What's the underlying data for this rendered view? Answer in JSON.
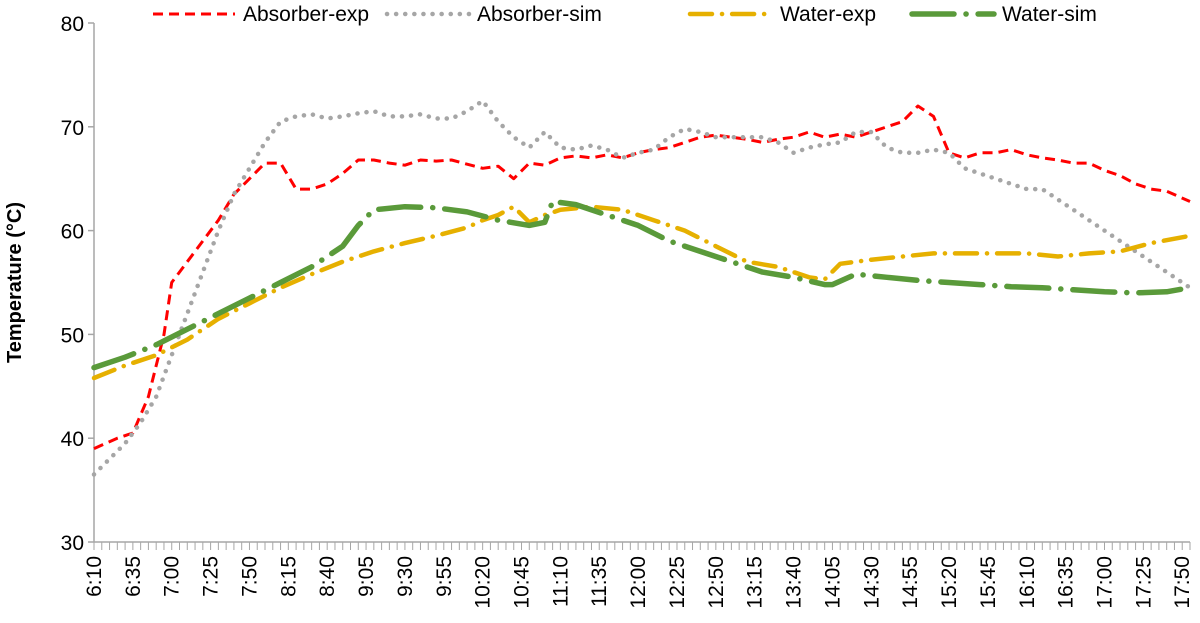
{
  "chart_data": {
    "type": "line",
    "title": "",
    "xlabel": "",
    "ylabel": "Temperature (°C)",
    "ylim": [
      30,
      80
    ],
    "yticks": [
      30,
      40,
      50,
      60,
      70,
      80
    ],
    "grid": false,
    "legend_position": "top",
    "x_start": "6:10",
    "x_end": "17:55",
    "x_step_minutes": 5,
    "x_tick_labels": [
      "6:10",
      "6:35",
      "7:00",
      "7:25",
      "7:50",
      "8:15",
      "8:40",
      "9:05",
      "9:30",
      "9:55",
      "10:20",
      "10:45",
      "11:10",
      "11:35",
      "12:00",
      "12:25",
      "12:50",
      "13:15",
      "13:40",
      "14:05",
      "14:30",
      "14:55",
      "15:20",
      "15:45",
      "16:10",
      "16:35",
      "17:00",
      "17:25",
      "17:50"
    ],
    "series": [
      {
        "name": "Absorber-exp",
        "color": "#ff0000",
        "style": "dashed",
        "points": [
          [
            "6:10",
            39.0
          ],
          [
            "6:25",
            40.0
          ],
          [
            "6:35",
            40.5
          ],
          [
            "6:45",
            44
          ],
          [
            "6:55",
            50
          ],
          [
            "7:00",
            55
          ],
          [
            "7:10",
            57
          ],
          [
            "7:20",
            59
          ],
          [
            "7:30",
            61
          ],
          [
            "7:40",
            63.5
          ],
          [
            "7:50",
            65
          ],
          [
            "8:00",
            66.5
          ],
          [
            "8:10",
            66.5
          ],
          [
            "8:20",
            64
          ],
          [
            "8:30",
            64
          ],
          [
            "8:40",
            64.5
          ],
          [
            "8:50",
            65.5
          ],
          [
            "9:00",
            66.8
          ],
          [
            "9:10",
            66.8
          ],
          [
            "9:20",
            66.5
          ],
          [
            "9:30",
            66.3
          ],
          [
            "9:40",
            66.8
          ],
          [
            "9:50",
            66.7
          ],
          [
            "10:00",
            66.8
          ],
          [
            "10:10",
            66.4
          ],
          [
            "10:20",
            66.0
          ],
          [
            "10:30",
            66.2
          ],
          [
            "10:40",
            65.0
          ],
          [
            "10:50",
            66.5
          ],
          [
            "11:00",
            66.3
          ],
          [
            "11:10",
            67.0
          ],
          [
            "11:20",
            67.2
          ],
          [
            "11:30",
            67.0
          ],
          [
            "11:40",
            67.3
          ],
          [
            "11:50",
            67.0
          ],
          [
            "12:00",
            67.5
          ],
          [
            "12:10",
            67.8
          ],
          [
            "12:20",
            68.0
          ],
          [
            "12:30",
            68.5
          ],
          [
            "12:40",
            69.0
          ],
          [
            "12:50",
            69.2
          ],
          [
            "13:00",
            69.0
          ],
          [
            "13:10",
            68.8
          ],
          [
            "13:20",
            68.5
          ],
          [
            "13:30",
            68.8
          ],
          [
            "13:40",
            69.0
          ],
          [
            "13:50",
            69.5
          ],
          [
            "14:00",
            69.0
          ],
          [
            "14:10",
            69.3
          ],
          [
            "14:20",
            69.0
          ],
          [
            "14:30",
            69.5
          ],
          [
            "14:40",
            70.0
          ],
          [
            "14:50",
            70.5
          ],
          [
            "15:00",
            72.0
          ],
          [
            "15:10",
            71.0
          ],
          [
            "15:20",
            67.5
          ],
          [
            "15:30",
            67.0
          ],
          [
            "15:40",
            67.5
          ],
          [
            "15:50",
            67.5
          ],
          [
            "16:00",
            67.8
          ],
          [
            "16:10",
            67.3
          ],
          [
            "16:20",
            67.0
          ],
          [
            "16:30",
            66.8
          ],
          [
            "16:40",
            66.5
          ],
          [
            "16:50",
            66.5
          ],
          [
            "17:00",
            65.8
          ],
          [
            "17:10",
            65.3
          ],
          [
            "17:20",
            64.5
          ],
          [
            "17:30",
            64.0
          ],
          [
            "17:40",
            63.8
          ],
          [
            "17:55",
            62.8
          ]
        ]
      },
      {
        "name": "Absorber-sim",
        "color": "#a6a6a6",
        "style": "dotted",
        "points": [
          [
            "6:10",
            36.5
          ],
          [
            "6:20",
            38.0
          ],
          [
            "6:30",
            39.5
          ],
          [
            "6:40",
            41.5
          ],
          [
            "6:50",
            44
          ],
          [
            "7:00",
            48
          ],
          [
            "7:10",
            52
          ],
          [
            "7:20",
            56
          ],
          [
            "7:30",
            60
          ],
          [
            "7:40",
            63.5
          ],
          [
            "7:50",
            66.0
          ],
          [
            "8:00",
            68.5
          ],
          [
            "8:10",
            70.5
          ],
          [
            "8:20",
            71.0
          ],
          [
            "8:30",
            71.2
          ],
          [
            "8:40",
            70.8
          ],
          [
            "8:50",
            71.0
          ],
          [
            "9:00",
            71.3
          ],
          [
            "9:10",
            71.5
          ],
          [
            "9:20",
            71.0
          ],
          [
            "9:30",
            71.0
          ],
          [
            "9:40",
            71.2
          ],
          [
            "9:50",
            70.8
          ],
          [
            "10:00",
            70.8
          ],
          [
            "10:10",
            71.5
          ],
          [
            "10:20",
            72.5
          ],
          [
            "10:30",
            70.5
          ],
          [
            "10:40",
            69.0
          ],
          [
            "10:50",
            68.0
          ],
          [
            "11:00",
            69.5
          ],
          [
            "11:10",
            68.0
          ],
          [
            "11:20",
            67.8
          ],
          [
            "11:30",
            68.2
          ],
          [
            "11:40",
            67.8
          ],
          [
            "11:50",
            67.0
          ],
          [
            "12:00",
            67.5
          ],
          [
            "12:10",
            67.8
          ],
          [
            "12:20",
            69.0
          ],
          [
            "12:30",
            69.8
          ],
          [
            "12:40",
            69.5
          ],
          [
            "12:50",
            69.0
          ],
          [
            "13:00",
            69.0
          ],
          [
            "13:10",
            69.0
          ],
          [
            "13:20",
            69.0
          ],
          [
            "13:30",
            68.5
          ],
          [
            "13:40",
            67.5
          ],
          [
            "13:50",
            68.0
          ],
          [
            "14:00",
            68.3
          ],
          [
            "14:10",
            68.5
          ],
          [
            "14:20",
            69.5
          ],
          [
            "14:30",
            69.5
          ],
          [
            "14:40",
            68.0
          ],
          [
            "14:50",
            67.5
          ],
          [
            "15:00",
            67.5
          ],
          [
            "15:10",
            67.8
          ],
          [
            "15:20",
            67.5
          ],
          [
            "15:30",
            66.0
          ],
          [
            "15:40",
            65.5
          ],
          [
            "15:50",
            65.0
          ],
          [
            "16:00",
            64.5
          ],
          [
            "16:10",
            64.0
          ],
          [
            "16:20",
            64.0
          ],
          [
            "16:30",
            63.0
          ],
          [
            "16:40",
            62.0
          ],
          [
            "16:50",
            61.0
          ],
          [
            "17:00",
            60.0
          ],
          [
            "17:10",
            59.0
          ],
          [
            "17:20",
            58.0
          ],
          [
            "17:30",
            57.0
          ],
          [
            "17:40",
            56.0
          ],
          [
            "17:55",
            54.5
          ]
        ]
      },
      {
        "name": "Water-exp",
        "color": "#e6b000",
        "style": "dash-dot",
        "points": [
          [
            "6:10",
            45.8
          ],
          [
            "6:30",
            47.0
          ],
          [
            "6:50",
            48.0
          ],
          [
            "7:10",
            49.5
          ],
          [
            "7:30",
            51.5
          ],
          [
            "7:50",
            53.0
          ],
          [
            "8:10",
            54.5
          ],
          [
            "8:30",
            55.8
          ],
          [
            "8:50",
            57.0
          ],
          [
            "9:10",
            58.0
          ],
          [
            "9:30",
            58.8
          ],
          [
            "9:50",
            59.5
          ],
          [
            "10:10",
            60.3
          ],
          [
            "10:20",
            61.0
          ],
          [
            "10:30",
            61.5
          ],
          [
            "10:40",
            62.3
          ],
          [
            "10:50",
            60.8
          ],
          [
            "11:00",
            61.5
          ],
          [
            "11:10",
            62.0
          ],
          [
            "11:30",
            62.3
          ],
          [
            "11:50",
            62.0
          ],
          [
            "12:10",
            61.0
          ],
          [
            "12:30",
            60.0
          ],
          [
            "12:50",
            58.5
          ],
          [
            "13:10",
            57.0
          ],
          [
            "13:30",
            56.5
          ],
          [
            "13:50",
            55.5
          ],
          [
            "14:00",
            55.3
          ],
          [
            "14:10",
            56.8
          ],
          [
            "14:30",
            57.2
          ],
          [
            "14:50",
            57.5
          ],
          [
            "15:10",
            57.8
          ],
          [
            "15:30",
            57.8
          ],
          [
            "15:50",
            57.8
          ],
          [
            "16:10",
            57.8
          ],
          [
            "16:30",
            57.5
          ],
          [
            "16:50",
            57.8
          ],
          [
            "17:10",
            58.0
          ],
          [
            "17:30",
            58.8
          ],
          [
            "17:55",
            59.5
          ]
        ]
      },
      {
        "name": "Water-sim",
        "color": "#5a9a3a",
        "style": "long-dash-dot",
        "points": [
          [
            "6:10",
            46.8
          ],
          [
            "6:30",
            47.8
          ],
          [
            "6:50",
            49.0
          ],
          [
            "7:10",
            50.5
          ],
          [
            "7:30",
            52.0
          ],
          [
            "7:50",
            53.5
          ],
          [
            "8:10",
            55.0
          ],
          [
            "8:30",
            56.5
          ],
          [
            "8:50",
            58.5
          ],
          [
            "9:00",
            60.5
          ],
          [
            "9:10",
            62.0
          ],
          [
            "9:30",
            62.3
          ],
          [
            "9:50",
            62.2
          ],
          [
            "10:10",
            61.8
          ],
          [
            "10:30",
            61.0
          ],
          [
            "10:50",
            60.5
          ],
          [
            "11:00",
            60.8
          ],
          [
            "11:05",
            62.8
          ],
          [
            "11:20",
            62.5
          ],
          [
            "11:40",
            61.5
          ],
          [
            "12:00",
            60.5
          ],
          [
            "12:20",
            59.0
          ],
          [
            "12:40",
            58.0
          ],
          [
            "13:00",
            57.0
          ],
          [
            "13:20",
            56.0
          ],
          [
            "13:40",
            55.5
          ],
          [
            "14:00",
            54.8
          ],
          [
            "14:05",
            54.8
          ],
          [
            "14:20",
            55.8
          ],
          [
            "14:40",
            55.5
          ],
          [
            "15:00",
            55.2
          ],
          [
            "15:20",
            55.0
          ],
          [
            "15:40",
            54.8
          ],
          [
            "16:00",
            54.6
          ],
          [
            "16:20",
            54.5
          ],
          [
            "16:40",
            54.3
          ],
          [
            "17:00",
            54.1
          ],
          [
            "17:20",
            54.0
          ],
          [
            "17:40",
            54.1
          ],
          [
            "17:55",
            54.5
          ]
        ]
      }
    ]
  }
}
